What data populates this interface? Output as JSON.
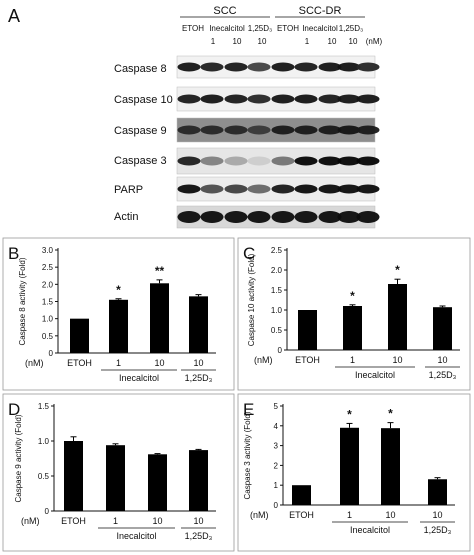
{
  "figure": {
    "panel_a_label": "A",
    "groups": [
      "SCC",
      "SCC-DR"
    ],
    "treatments_top": [
      "ETOH",
      "Inecalcitol",
      "1,25D₃",
      "ETOH",
      "Inecalcitol",
      "1,25D₃"
    ],
    "doses": [
      "1",
      "10",
      "10",
      "1",
      "10",
      "10"
    ],
    "dose_unit": "(nM)",
    "blot_rows": [
      "Caspase 8",
      "Caspase 10",
      "Caspase 9",
      "Caspase 3",
      "PARP",
      "Actin"
    ],
    "blot_backgrounds": [
      "#f2f2f2",
      "#f0f0f0",
      "#8e8e8e",
      "#e6e6e6",
      "#ededed",
      "#d8d8d8"
    ],
    "blot_band_intensity": [
      [
        0.92,
        0.88,
        0.9,
        0.75,
        0.92,
        0.9,
        0.92,
        0.93,
        0.85
      ],
      [
        0.9,
        0.92,
        0.9,
        0.85,
        0.92,
        0.93,
        0.9,
        0.92,
        0.92
      ],
      [
        0.85,
        0.85,
        0.85,
        0.78,
        0.9,
        0.9,
        0.9,
        0.92,
        0.9
      ],
      [
        0.88,
        0.5,
        0.35,
        0.2,
        0.55,
        0.98,
        0.98,
        0.98,
        0.98
      ],
      [
        0.95,
        0.7,
        0.75,
        0.6,
        0.9,
        0.95,
        0.95,
        0.95,
        0.95
      ],
      [
        0.95,
        0.95,
        0.95,
        0.95,
        0.95,
        0.95,
        0.95,
        0.95,
        0.95
      ]
    ],
    "x_unit": "(nM)",
    "x_categories": [
      "ETOH",
      "1",
      "10",
      "10"
    ],
    "x_groups": [
      "Inecalcitol",
      "1,25D₃"
    ]
  },
  "chart_data": [
    {
      "panel": "B",
      "type": "bar",
      "categories": [
        "ETOH",
        "1",
        "10",
        "10"
      ],
      "values": [
        1.0,
        1.55,
        2.03,
        1.65
      ],
      "errors": [
        0.0,
        0.03,
        0.1,
        0.05
      ],
      "significance": [
        "",
        "*",
        "**",
        ""
      ],
      "ylabel": "Caspase 8 activity (Fold)",
      "ylim": [
        0,
        3.0
      ],
      "yticks": [
        "0",
        "0.5",
        "1.0",
        "1.5",
        "2.0",
        "2.5",
        "3.0"
      ]
    },
    {
      "panel": "C",
      "type": "bar",
      "categories": [
        "ETOH",
        "1",
        "10",
        "10"
      ],
      "values": [
        1.0,
        1.1,
        1.65,
        1.07
      ],
      "errors": [
        0.0,
        0.03,
        0.12,
        0.03
      ],
      "significance": [
        "",
        "*",
        "*",
        ""
      ],
      "ylabel": "Caspase 10 activity (Fold)",
      "ylim": [
        0,
        2.5
      ],
      "yticks": [
        "0",
        "0.5",
        "1.0",
        "1.5",
        "2.0",
        "2.5"
      ]
    },
    {
      "panel": "D",
      "type": "bar",
      "categories": [
        "ETOH",
        "1",
        "10",
        "10"
      ],
      "values": [
        1.0,
        0.94,
        0.81,
        0.87
      ],
      "errors": [
        0.06,
        0.02,
        0.01,
        0.01
      ],
      "significance": [
        "",
        "",
        "",
        ""
      ],
      "ylabel": "Caspase 9 activity (Fold)",
      "ylim": [
        0,
        1.5
      ],
      "yticks": [
        "0",
        "0.5",
        "1.0",
        "1.5"
      ]
    },
    {
      "panel": "E",
      "type": "bar",
      "categories": [
        "ETOH",
        "1",
        "10",
        "10"
      ],
      "values": [
        1.0,
        3.9,
        3.88,
        1.3
      ],
      "errors": [
        0.0,
        0.22,
        0.28,
        0.08
      ],
      "significance": [
        "",
        "*",
        "*",
        ""
      ],
      "ylabel": "Caspase 3 activity (Fold)",
      "ylim": [
        0,
        5
      ],
      "yticks": [
        "0",
        "1",
        "2",
        "3",
        "4",
        "5"
      ]
    }
  ]
}
